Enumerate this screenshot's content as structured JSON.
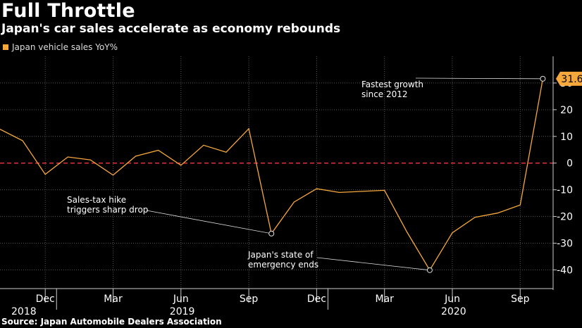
{
  "header": {
    "title": "Full Throttle",
    "subtitle": "Japan's car sales accelerate as economy rebounds"
  },
  "legend": {
    "label": "Japan vehicle sales YoY%"
  },
  "source": "Source: Japan Automobile Dealers Association",
  "colors": {
    "series": "#f7a83b",
    "zero_line": "#e0303a",
    "grid": "#555555",
    "background": "#000000"
  },
  "chart_data": {
    "type": "line",
    "title": "Full Throttle",
    "subtitle": "Japan's car sales accelerate as economy rebounds",
    "xlabel": "",
    "ylabel": "",
    "x": [
      "2018-10",
      "2018-11",
      "2018-12",
      "2019-01",
      "2019-02",
      "2019-03",
      "2019-04",
      "2019-05",
      "2019-06",
      "2019-07",
      "2019-08",
      "2019-09",
      "2019-10",
      "2019-11",
      "2019-12",
      "2020-01",
      "2020-02",
      "2020-03",
      "2020-04",
      "2020-05",
      "2020-06",
      "2020-07",
      "2020-08",
      "2020-09",
      "2020-10"
    ],
    "series": [
      {
        "name": "Japan vehicle sales YoY%",
        "values": [
          12.7,
          8.4,
          -4.2,
          2.3,
          1.2,
          -4.5,
          2.6,
          4.8,
          -0.8,
          6.7,
          4.1,
          12.9,
          -26.4,
          -14.6,
          -9.6,
          -11.0,
          -10.6,
          -10.2,
          -25.9,
          -40.1,
          -26.1,
          -20.3,
          -18.7,
          -15.7,
          31.6
        ]
      }
    ],
    "x_tick_labels": [
      "Dec",
      "Mar",
      "Jun",
      "Sep",
      "Dec",
      "Mar",
      "Jun",
      "Sep"
    ],
    "x_tick_dates": [
      "2018-12",
      "2019-03",
      "2019-06",
      "2019-09",
      "2019-12",
      "2020-03",
      "2020-06",
      "2020-09"
    ],
    "year_labels": [
      {
        "label": "2018",
        "date": "2018-10"
      },
      {
        "label": "2019",
        "date": "2019-06"
      },
      {
        "label": "2020",
        "date": "2020-06"
      }
    ],
    "y_ticks": [
      "30",
      "20",
      "10",
      "0",
      "-10",
      "-20",
      "-30",
      "-40"
    ],
    "y_tick_values": [
      30,
      20,
      10,
      0,
      -10,
      -20,
      -30,
      -40
    ],
    "ylim": [
      -47,
      40
    ],
    "grid": true,
    "y_axis_side": "right",
    "last_value_label": "31.6",
    "annotations": [
      {
        "lines": [
          "Fastest growth",
          "since 2012"
        ],
        "target": "2020-10"
      },
      {
        "lines": [
          "Sales-tax hike",
          "triggers sharp drop"
        ],
        "target": "2019-10"
      },
      {
        "lines": [
          "Japan's state of",
          "emergency ends"
        ],
        "target": "2020-05"
      }
    ]
  }
}
